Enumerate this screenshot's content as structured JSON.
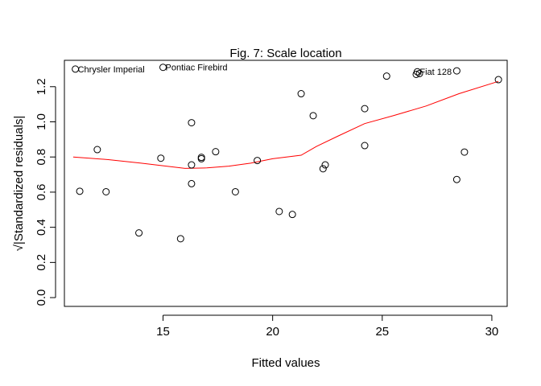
{
  "chart_data": {
    "type": "scatter",
    "title": "Fig. 7: Scale location",
    "xlabel": "Fitted values",
    "ylabel": "√|Standardized residuals|",
    "xlim": [
      10.5,
      30.7
    ],
    "ylim": [
      -0.05,
      1.35
    ],
    "x_ticks": [
      15,
      20,
      25,
      30
    ],
    "y_ticks": [
      0.0,
      0.2,
      0.4,
      0.6,
      0.8,
      1.0,
      1.2
    ],
    "x_tick_labels": [
      "15",
      "20",
      "25",
      "30"
    ],
    "y_tick_labels": [
      "0.0",
      "0.2",
      "0.4",
      "0.6",
      "0.8",
      "1.0",
      "1.2"
    ],
    "grid": false,
    "series": [
      {
        "kind": "points",
        "marker": "open-circle",
        "color": "#000000",
        "points": [
          {
            "x": 11.0,
            "y": 1.3,
            "label": "Chrysler Imperial"
          },
          {
            "x": 15.0,
            "y": 1.31,
            "label": "Pontiac Firebird"
          },
          {
            "x": 26.6,
            "y": 1.285,
            "label": "Fiat 128"
          },
          {
            "x": 26.55,
            "y": 1.27
          },
          {
            "x": 26.7,
            "y": 1.275
          },
          {
            "x": 28.4,
            "y": 1.29
          },
          {
            "x": 30.3,
            "y": 1.24
          },
          {
            "x": 25.2,
            "y": 1.26
          },
          {
            "x": 21.3,
            "y": 1.16
          },
          {
            "x": 24.2,
            "y": 1.075
          },
          {
            "x": 21.85,
            "y": 1.035
          },
          {
            "x": 16.3,
            "y": 0.995
          },
          {
            "x": 24.2,
            "y": 0.865
          },
          {
            "x": 12.0,
            "y": 0.842
          },
          {
            "x": 17.4,
            "y": 0.83
          },
          {
            "x": 28.75,
            "y": 0.828
          },
          {
            "x": 14.9,
            "y": 0.793
          },
          {
            "x": 16.75,
            "y": 0.798
          },
          {
            "x": 16.75,
            "y": 0.79
          },
          {
            "x": 19.3,
            "y": 0.78
          },
          {
            "x": 16.3,
            "y": 0.755
          },
          {
            "x": 22.4,
            "y": 0.755
          },
          {
            "x": 22.3,
            "y": 0.733
          },
          {
            "x": 28.4,
            "y": 0.672
          },
          {
            "x": 16.3,
            "y": 0.648
          },
          {
            "x": 11.2,
            "y": 0.605
          },
          {
            "x": 12.4,
            "y": 0.602
          },
          {
            "x": 18.3,
            "y": 0.602
          },
          {
            "x": 20.3,
            "y": 0.49
          },
          {
            "x": 20.9,
            "y": 0.473
          },
          {
            "x": 13.9,
            "y": 0.368
          },
          {
            "x": 15.8,
            "y": 0.335
          }
        ]
      },
      {
        "kind": "smooth-line",
        "color": "#ff0000",
        "x": [
          10.9,
          12.5,
          14.0,
          15.0,
          16.0,
          17.0,
          18.0,
          19.0,
          20.0,
          21.3,
          22.0,
          23.0,
          24.2,
          25.5,
          27.0,
          28.5,
          30.3
        ],
        "y": [
          0.8,
          0.785,
          0.765,
          0.75,
          0.735,
          0.738,
          0.748,
          0.765,
          0.79,
          0.81,
          0.86,
          0.92,
          0.99,
          1.035,
          1.09,
          1.16,
          1.23
        ]
      }
    ]
  }
}
